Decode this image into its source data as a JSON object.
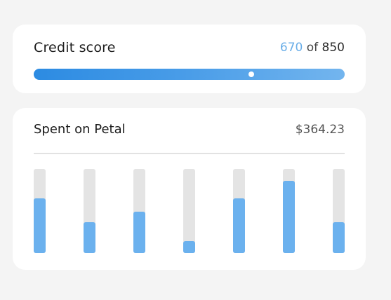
{
  "credit": {
    "title": "Credit score",
    "score": "670",
    "separator": "of",
    "max": "850",
    "level": 0.7
  },
  "spent": {
    "title": "Spent on Petal",
    "amount": "$364.23",
    "bar_levels": [
      0.65,
      0.37,
      0.49,
      0.14,
      0.65,
      0.86,
      0.37
    ]
  },
  "colors": {
    "accent": "#6bb1ee",
    "track": "#e4e4e4",
    "gradient_start": "#2c8be2",
    "gradient_end": "#73b5ee"
  }
}
